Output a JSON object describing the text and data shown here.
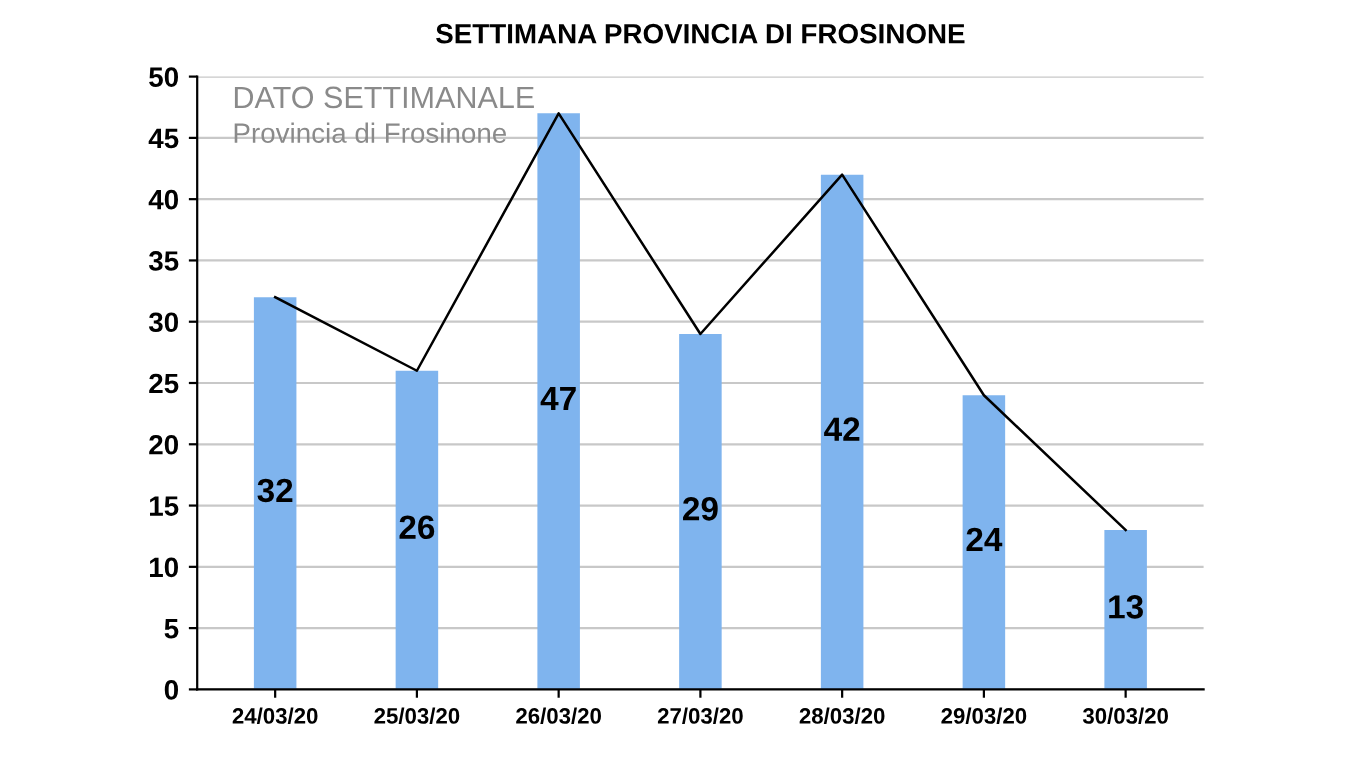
{
  "chart_data": {
    "type": "bar",
    "title": "SETTIMANA PROVINCIA DI FROSINONE",
    "categories": [
      "24/03/20",
      "25/03/20",
      "26/03/20",
      "27/03/20",
      "28/03/20",
      "29/03/20",
      "30/03/20"
    ],
    "series": [
      {
        "color": "#7fb4ee",
        "values": [
          32,
          26,
          47,
          29,
          42,
          24,
          13
        ],
        "value_labels": [
          "32",
          "26",
          "47",
          "29",
          "42",
          "24",
          "13"
        ]
      },
      {
        "type": "line",
        "color": "#000000",
        "values": [
          32,
          26,
          47,
          29,
          42,
          24,
          13
        ]
      }
    ],
    "annotations": [
      "DATO SETTIMANALE",
      "Provincia di Frosinone"
    ],
    "ylim": [
      0,
      50
    ],
    "yticks": [
      0,
      5,
      10,
      15,
      20,
      25,
      30,
      35,
      40,
      45,
      50
    ],
    "grid": "y"
  }
}
